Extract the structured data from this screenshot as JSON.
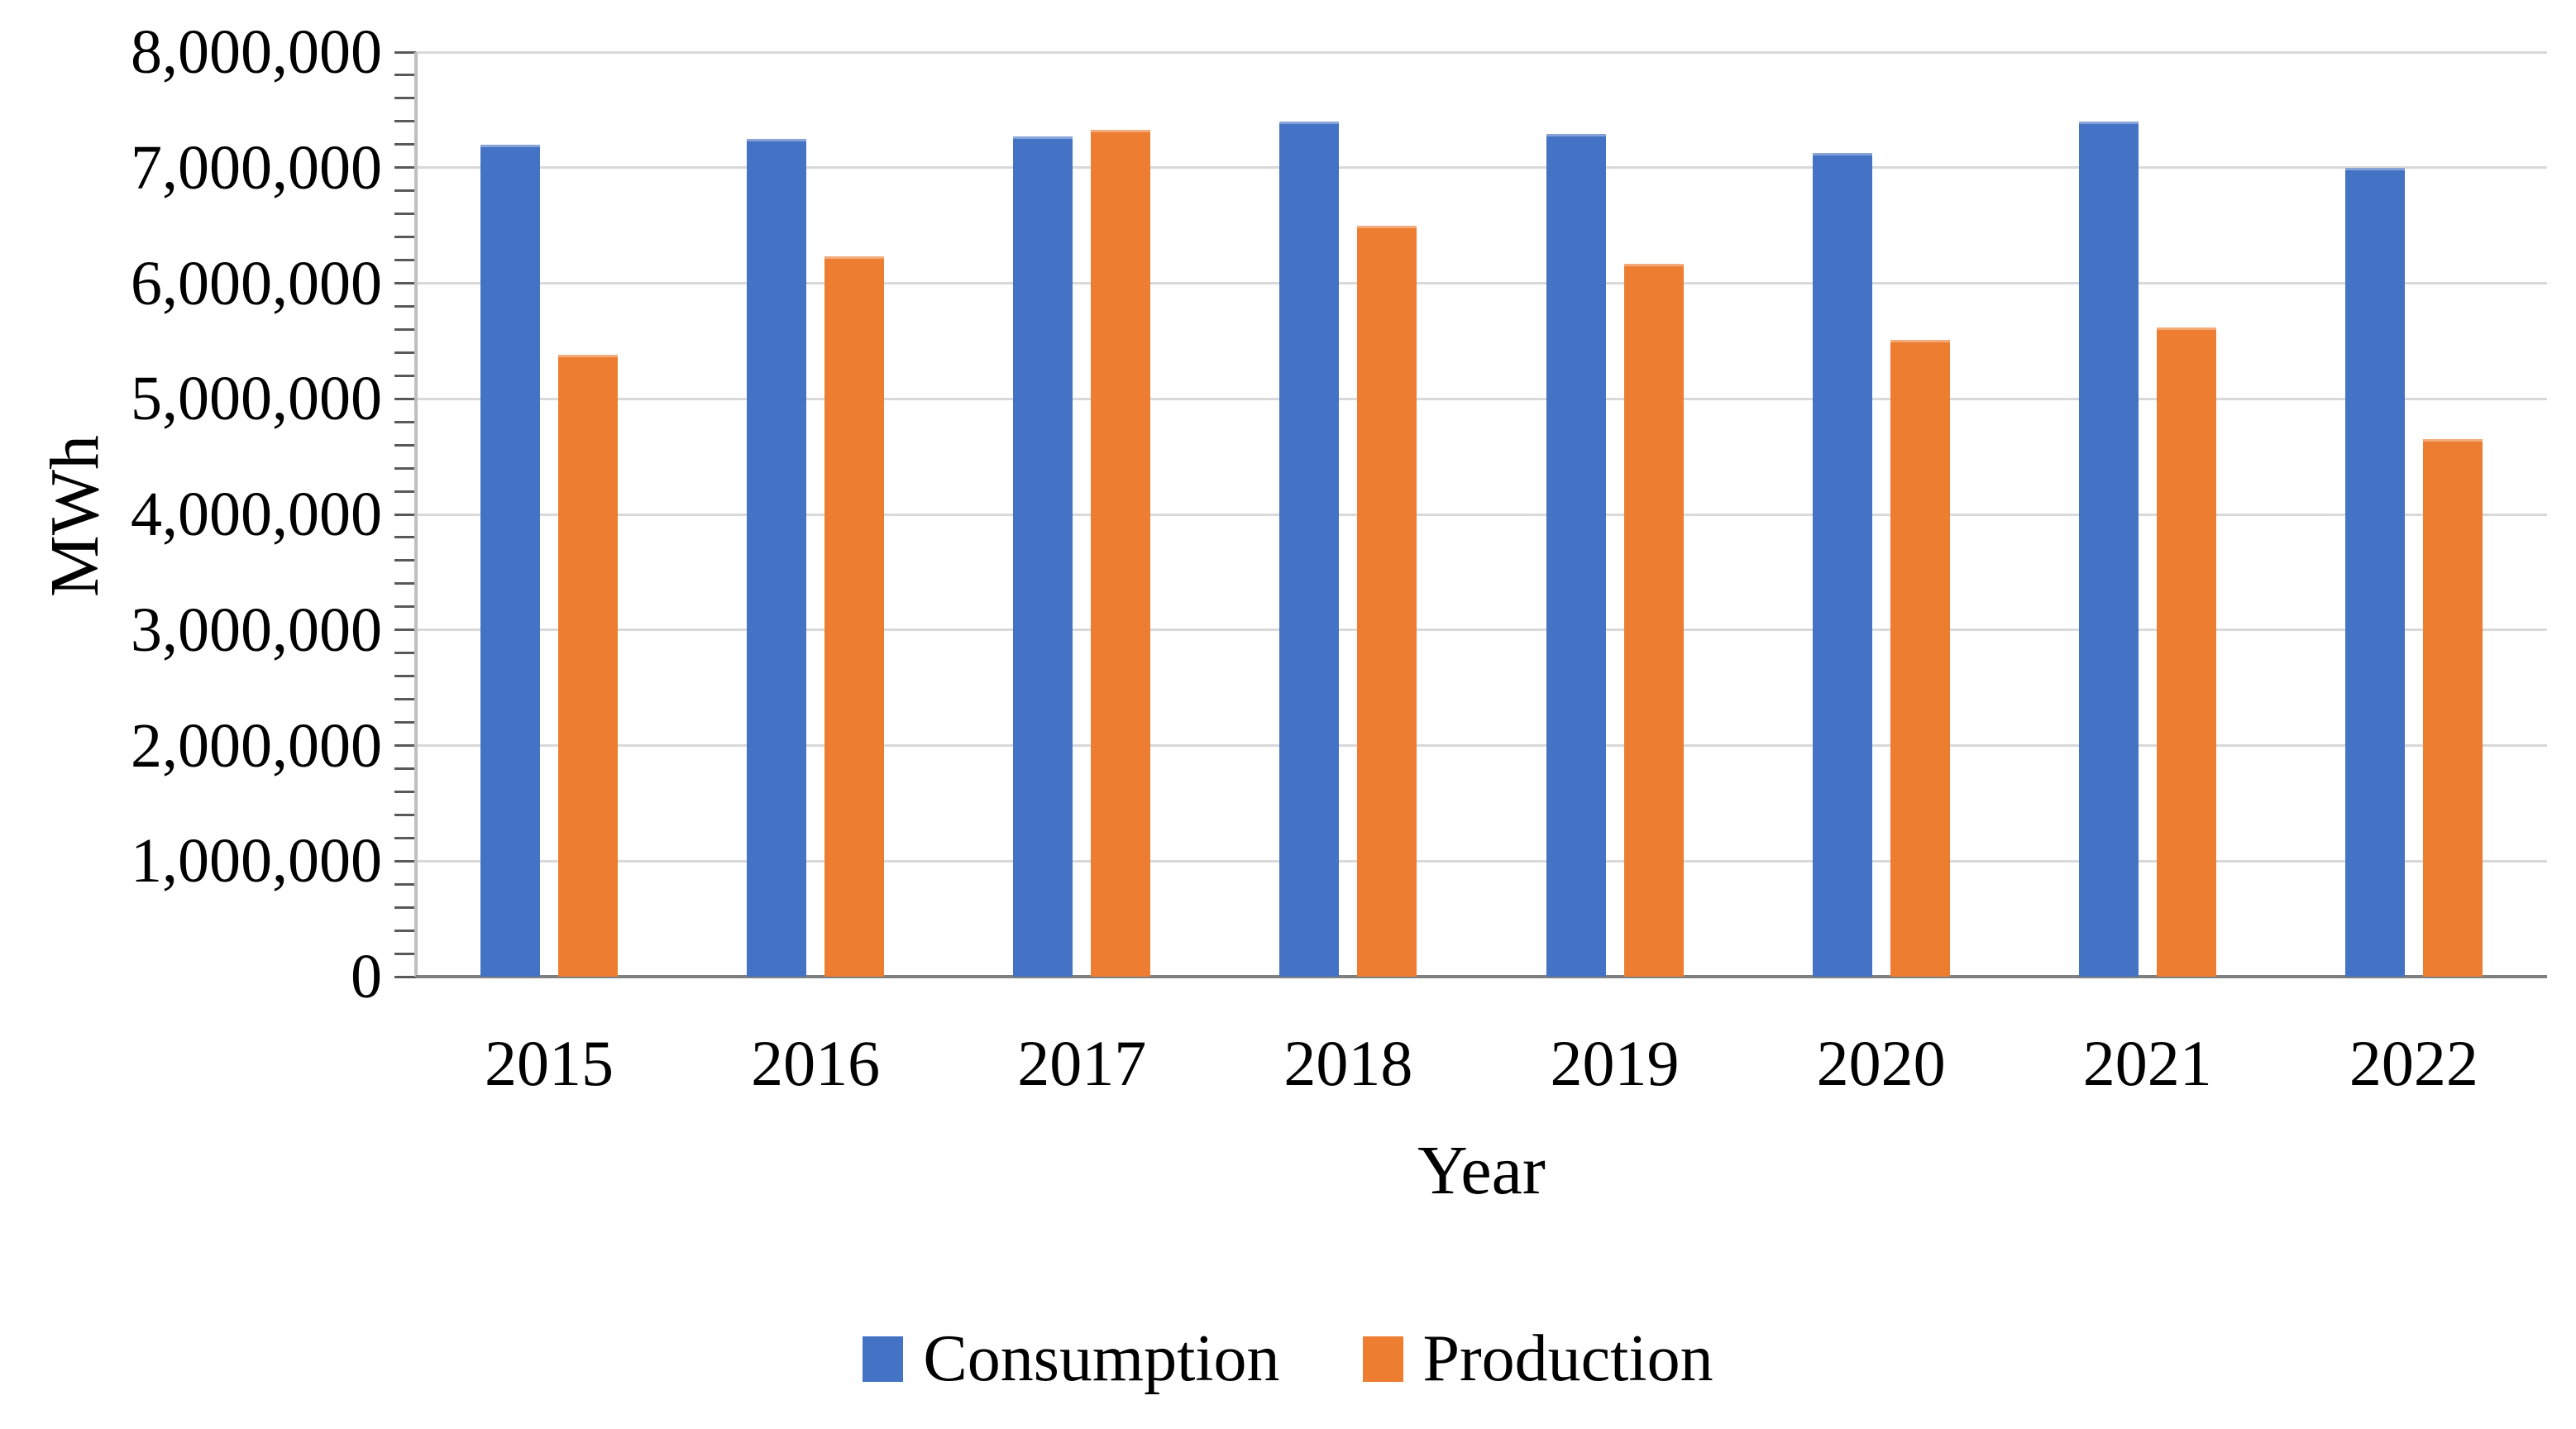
{
  "chart_data": {
    "type": "bar",
    "title": "",
    "categories": [
      "2015",
      "2016",
      "2017",
      "2018",
      "2019",
      "2020",
      "2021",
      "2022"
    ],
    "series": [
      {
        "name": "Consumption",
        "color": "#4472C4",
        "values": [
          7200000,
          7250000,
          7270000,
          7400000,
          7290000,
          7130000,
          7400000,
          7000000
        ]
      },
      {
        "name": "Production",
        "color": "#ED7D31",
        "values": [
          5380000,
          6230000,
          7330000,
          6500000,
          6170000,
          5510000,
          5620000,
          4650000
        ]
      }
    ],
    "xlabel": "Year",
    "ylabel": "MWh",
    "ylim": [
      0,
      8000000
    ],
    "y_major_step": 1000000,
    "y_minor_step": 200000,
    "y_axis_labels": [
      "0",
      "1,000,000",
      "2,000,000",
      "3,000,000",
      "4,000,000",
      "5,000,000",
      "6,000,000",
      "7,000,000",
      "8,000,000"
    ],
    "grid": "horizontal-major",
    "legend_position": "bottom",
    "colors": {
      "gridline": "#d9d9d9",
      "y_axis_line": "#bfbfbf",
      "x_axis_line": "#7f7f7f",
      "tick": "#595959",
      "text": "#000000",
      "background": "#ffffff"
    }
  }
}
